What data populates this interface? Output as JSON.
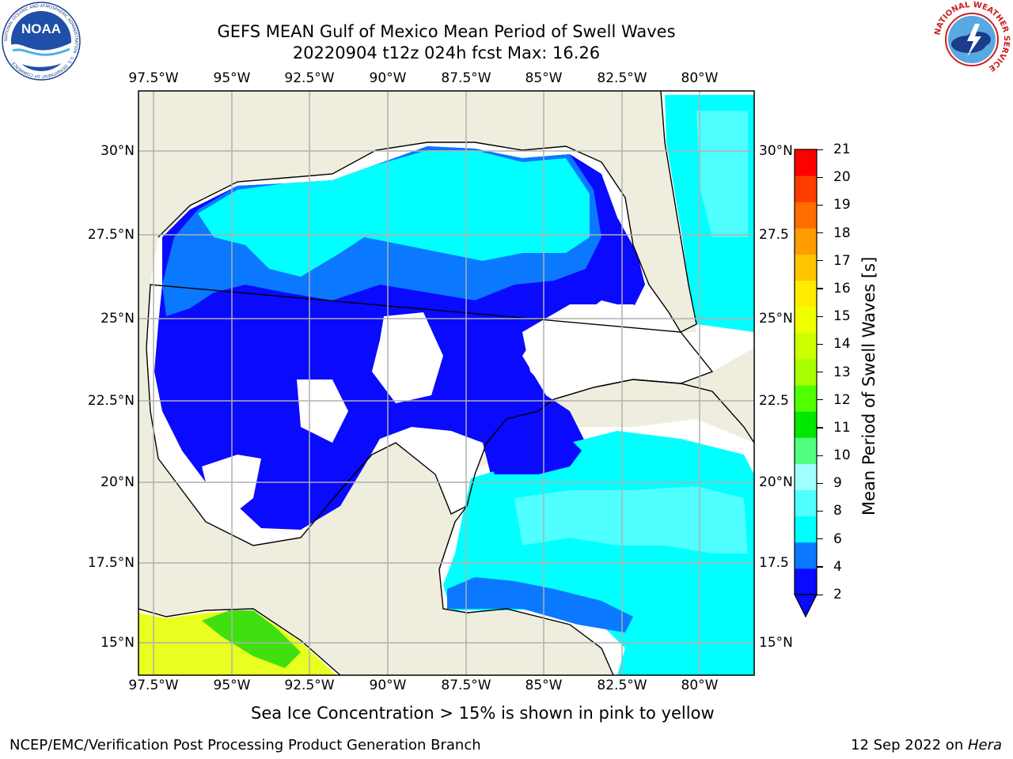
{
  "title": {
    "line1": "GEFS MEAN Gulf of Mexico Mean Period of Swell Waves",
    "line2": "20220904 t12z 024h fcst   Max: 16.26"
  },
  "logos": {
    "noaa_text": "NOAA",
    "noaa_ring": "NATIONAL OCEANIC AND ATMOSPHERIC ADMINISTRATION · U.S. DEPARTMENT OF COMMERCE ·",
    "nws_ring": "NATIONAL WEATHER SERVICE"
  },
  "map": {
    "lon_labels": [
      "97.5°W",
      "95°W",
      "92.5°W",
      "90°W",
      "87.5°W",
      "85°W",
      "82.5°W",
      "80°W"
    ],
    "lat_labels": [
      "30°N",
      "27.5°N",
      "25°N",
      "22.5°N",
      "20°N",
      "17.5°N",
      "15°N"
    ],
    "lat_labels_right": [
      "30°N",
      "27.5",
      "25°N",
      "22.5",
      "20°N",
      "17.5",
      "15°N"
    ],
    "lon_values": [
      -97.5,
      -95,
      -92.5,
      -90,
      -87.5,
      -85,
      -82.5,
      -80
    ],
    "lat_values": [
      30,
      27.5,
      25,
      22.5,
      20,
      17.5,
      15
    ],
    "extent": {
      "lon": [
        -98,
        -78.2
      ],
      "lat": [
        14,
        31.9
      ]
    },
    "land_color": "#efedde",
    "grid_color": "#b0b0b0"
  },
  "colorbar": {
    "label": "Mean Period of Swell Waves [s]",
    "ticks": [
      "2",
      "4",
      "6",
      "8",
      "9",
      "10",
      "11",
      "12",
      "13",
      "14",
      "15",
      "16",
      "17",
      "18",
      "19",
      "20",
      "21"
    ],
    "colors": [
      "#0a0aff",
      "#0a78ff",
      "#00ffff",
      "#50ffff",
      "#a0ffff",
      "#50ff80",
      "#00e800",
      "#50ff00",
      "#a8ff00",
      "#ccff00",
      "#f0ff00",
      "#ffec00",
      "#ffc400",
      "#ff9c00",
      "#ff6c00",
      "#ff3c00",
      "#ff0000"
    ]
  },
  "note": "Sea Ice Concentration > 15% is shown in pink to yellow",
  "footer": {
    "left": "NCEP/EMC/Verification Post Processing Product Generation Branch",
    "right_prefix": "12 Sep 2022 on ",
    "right_host": "Hera"
  }
}
